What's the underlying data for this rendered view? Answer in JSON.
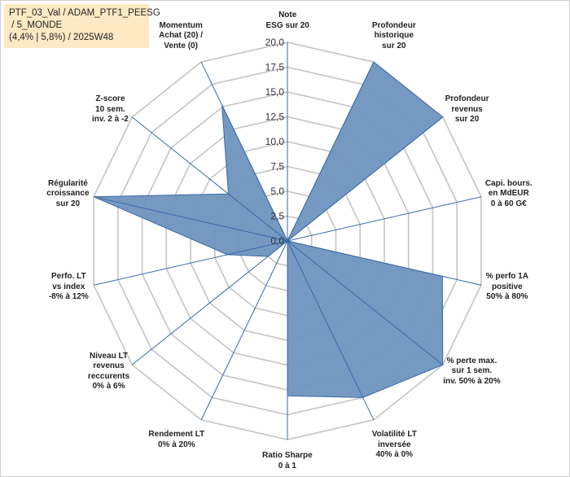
{
  "title_lines": [
    "PTF_03_Val / ADAM_PTF1_PEESG",
    " / 5_MONDE",
    "(4,4% | 5,8%) / 2025W48"
  ],
  "chart_data": {
    "type": "radar",
    "r_min": 0,
    "r_max": 20,
    "ticks": [
      "0,0",
      "2,5",
      "5,0",
      "7,5",
      "10,0",
      "12,5",
      "15,0",
      "17,5",
      "20,0"
    ],
    "grid": true,
    "fill_color": "#6f93bf",
    "line_color": "#3a6aa8",
    "grid_color": "#c4c4c4",
    "axes": [
      {
        "label": [
          "Note",
          "ESG sur 20"
        ],
        "value": 0
      },
      {
        "label": [
          "Profondeur",
          "historique",
          "sur 20"
        ],
        "value": 20
      },
      {
        "label": [
          "Profondeur",
          "revenus",
          "sur 20"
        ],
        "value": 20
      },
      {
        "label": [
          "Capi. bours.",
          "en MdEUR",
          "0 à 60 G€"
        ],
        "value": 0
      },
      {
        "label": [
          "% perfo 1A",
          "positive",
          "50% à 80%"
        ],
        "value": 16
      },
      {
        "label": [
          "% perte max.",
          "sur 1 sem.",
          "inv. 50% à 20%"
        ],
        "value": 20
      },
      {
        "label": [
          "Volatilité LT",
          "inversée",
          "40% à 0%"
        ],
        "value": 17.5
      },
      {
        "label": [
          "Ratio Sharpe",
          "0 à 1"
        ],
        "value": 15.6
      },
      {
        "label": [
          "Rendement LT",
          "0% à 20%"
        ],
        "value": 0
      },
      {
        "label": [
          "Niveau LT",
          "revenus",
          "reccurents",
          "0% à 6%"
        ],
        "value": 2.5
      },
      {
        "label": [
          "Perfo. LT",
          "vs index",
          "-8% à 12%"
        ],
        "value": 6.2
      },
      {
        "label": [
          "Régularité",
          "croissance",
          "sur 20"
        ],
        "value": 20
      },
      {
        "label": [
          "Z-score",
          "10 sem.",
          "inv. 2 à -2"
        ],
        "value": 7.6
      },
      {
        "label": [
          "Momentum",
          "Achat (20) /",
          "Vente (0)"
        ],
        "value": 15.2
      }
    ]
  }
}
